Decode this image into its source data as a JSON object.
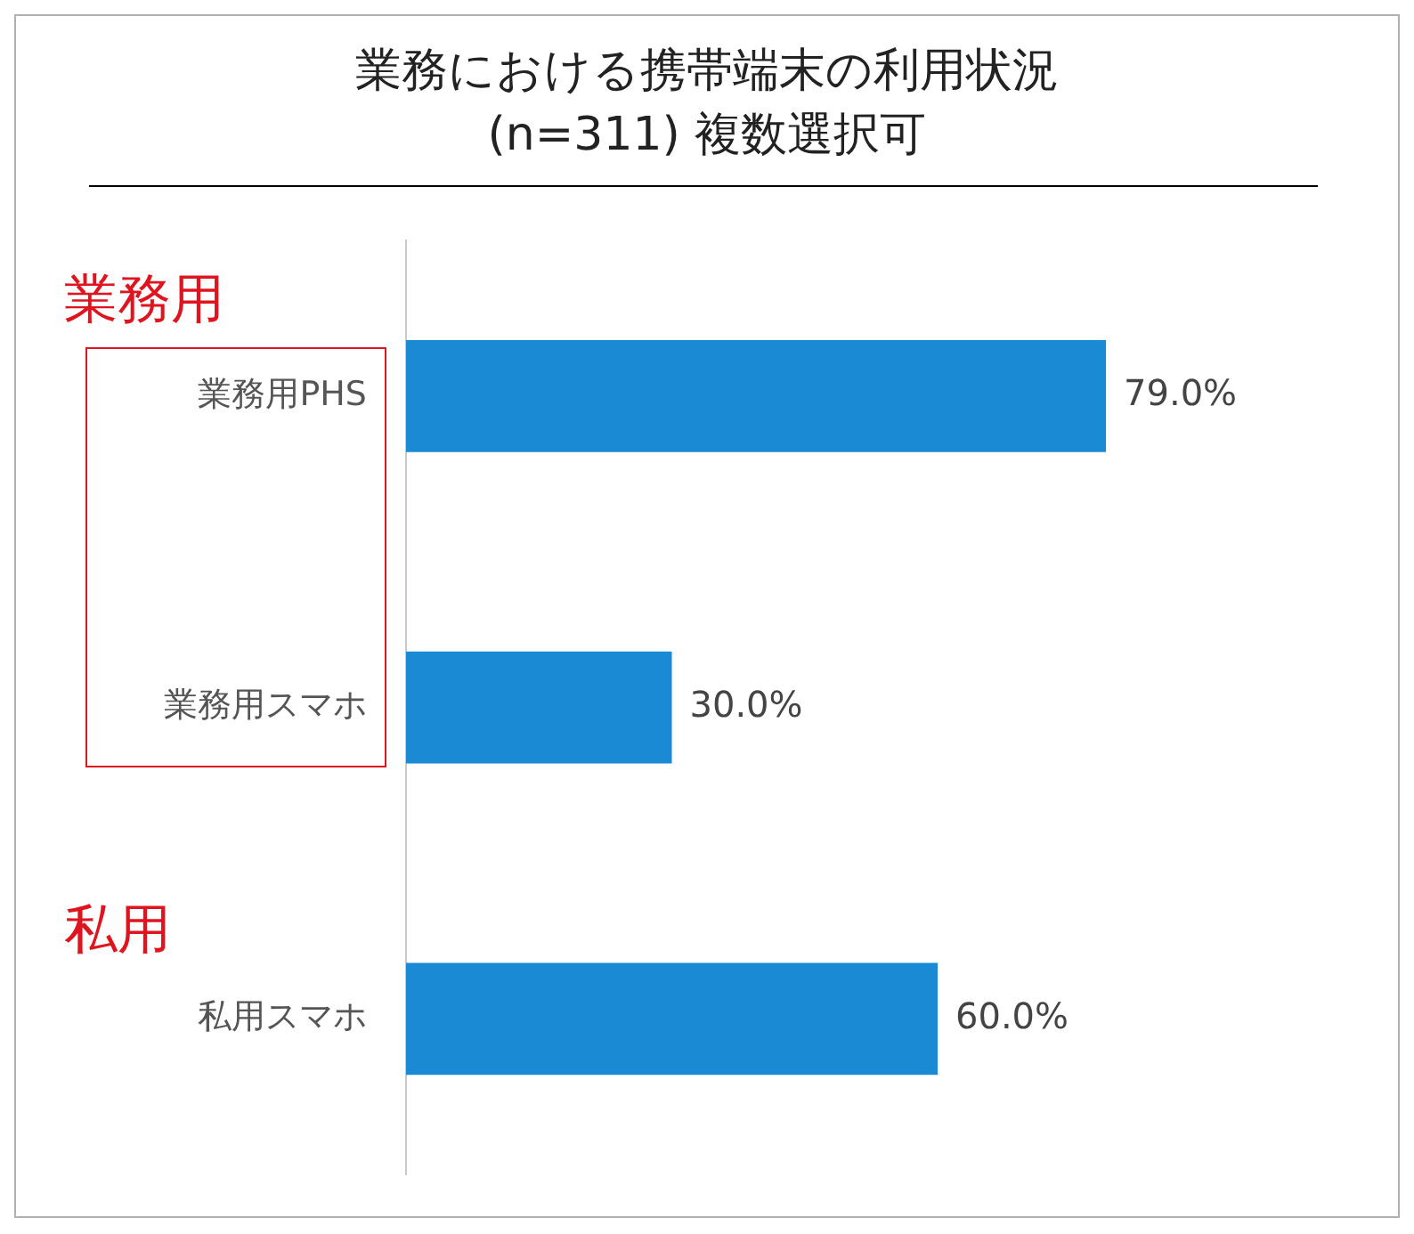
{
  "chart_data": {
    "type": "bar",
    "orientation": "horizontal",
    "title": "業務における携帯端末の利用状況",
    "subtitle": "(n=311) 複数選択可",
    "categories": [
      "業務用PHS",
      "業務用スマホ",
      "私用スマホ"
    ],
    "values": [
      79.0,
      30.0,
      60.0
    ],
    "value_labels": [
      "79.0%",
      "30.0%",
      "60.0%"
    ],
    "color": "#1a8ad4",
    "annotations": [
      "業務用",
      "私用"
    ]
  }
}
